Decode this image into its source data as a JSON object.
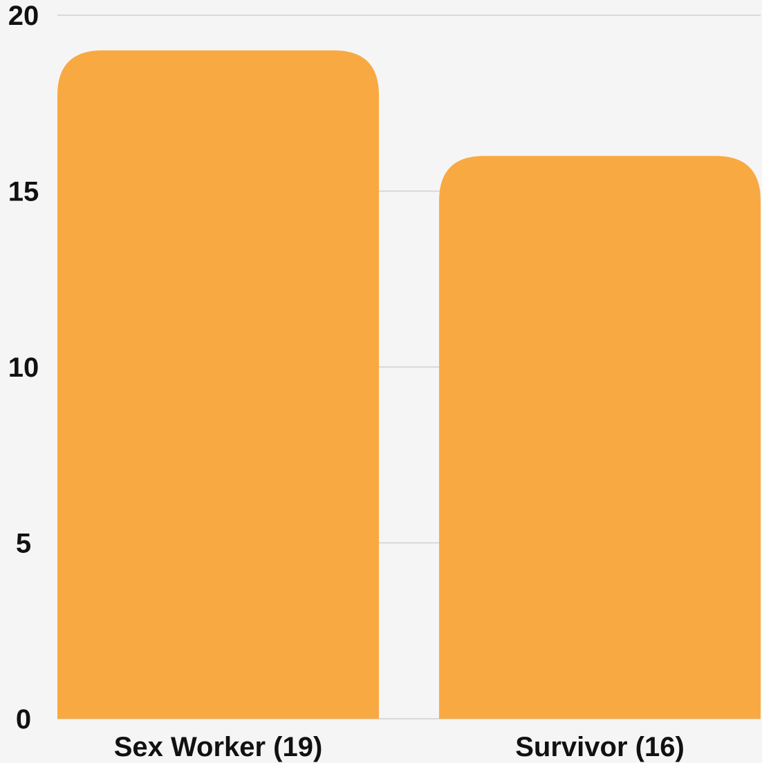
{
  "chart_data": {
    "type": "bar",
    "categories": [
      "Sex Worker (19)",
      "Survivor (16)"
    ],
    "values": [
      19,
      16
    ],
    "title": "",
    "xlabel": "",
    "ylabel": "",
    "ylim": [
      0,
      20
    ],
    "yticks": [
      "0",
      "5",
      "10",
      "15",
      "20"
    ],
    "grid": true,
    "colors": {
      "bar": "#f9a942",
      "grid": "#d0d0d0",
      "background": "#f5f5f5",
      "text": "#111111"
    }
  }
}
